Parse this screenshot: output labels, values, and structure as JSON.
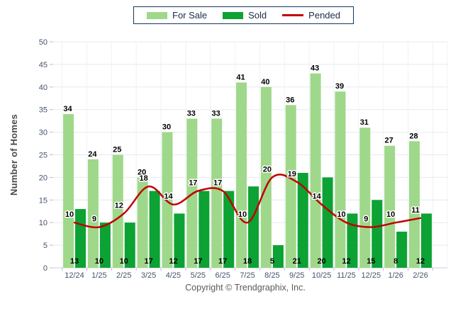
{
  "legend": {
    "for_sale_label": "For Sale",
    "sold_label": "Sold",
    "pended_label": "Pended"
  },
  "y_axis_title": "Number of Homes",
  "footer_text": "Copyright © Trendgraphix, Inc.",
  "colors": {
    "for_sale": "#9FD88A",
    "sold": "#0CA234",
    "pended": "#C00000",
    "grid_h": "#E4E9F0",
    "grid_v": "#EEF2F6",
    "baseline": "#C9D2DC",
    "tick": "#B6C0CC",
    "axis_text": "#44546A"
  },
  "chart_data": {
    "type": "bar",
    "title": "",
    "xlabel": "",
    "ylabel": "Number of Homes",
    "ylim": [
      0,
      50
    ],
    "ytick_step": 5,
    "grid": true,
    "legend_position": "top",
    "categories": [
      "12/24",
      "1/25",
      "2/25",
      "3/25",
      "4/25",
      "5/25",
      "6/25",
      "7/25",
      "8/25",
      "9/25",
      "10/25",
      "11/25",
      "12/25",
      "1/26",
      "2/26"
    ],
    "series": [
      {
        "name": "For Sale",
        "type": "bar",
        "color": "#9FD88A",
        "values": [
          34,
          24,
          25,
          20,
          30,
          33,
          33,
          41,
          40,
          36,
          43,
          39,
          31,
          27,
          28
        ]
      },
      {
        "name": "Sold",
        "type": "bar",
        "color": "#0CA234",
        "values": [
          13,
          10,
          10,
          17,
          12,
          17,
          17,
          18,
          5,
          21,
          20,
          12,
          15,
          8,
          12
        ]
      },
      {
        "name": "Pended",
        "type": "line",
        "color": "#C00000",
        "values": [
          10,
          9,
          12,
          18,
          14,
          17,
          17,
          10,
          20,
          19,
          14,
          10,
          9,
          10,
          11
        ]
      }
    ]
  }
}
